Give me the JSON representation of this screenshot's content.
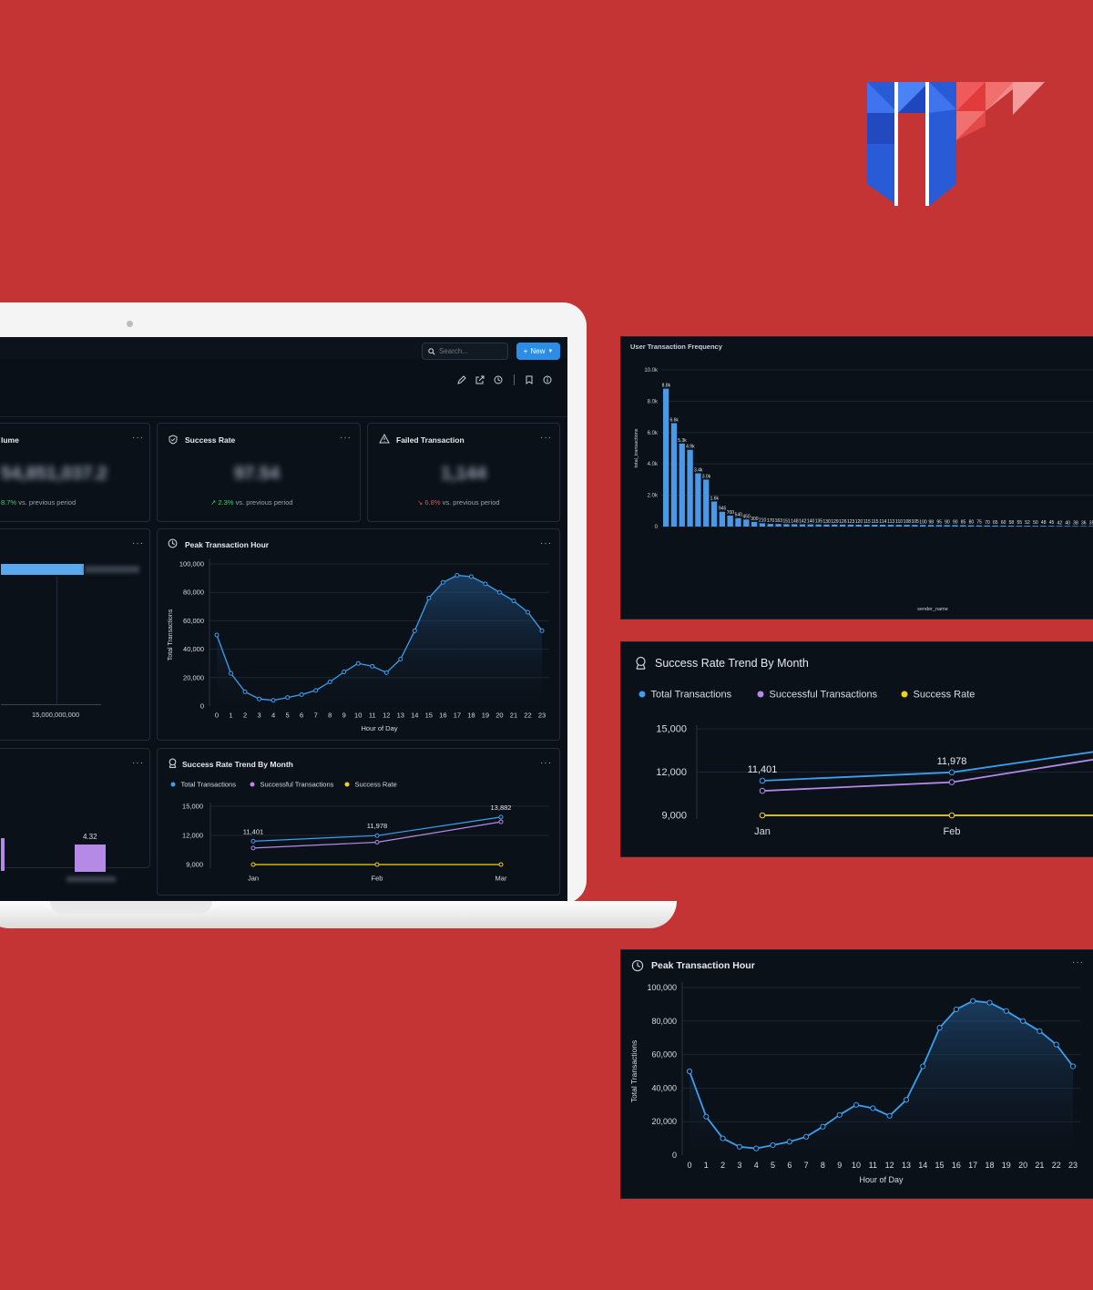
{
  "topbar": {
    "search_placeholder": "Search...",
    "new_label": "New"
  },
  "kpis": [
    {
      "title": "lume",
      "value": "54,851,037.2",
      "delta": "8.7%",
      "delta_text": "vs. previous period"
    },
    {
      "title": "Success Rate",
      "value": "97.54",
      "delta": "2.3%",
      "delta_text": "vs. previous period"
    },
    {
      "title": "Failed Transaction",
      "value": "1,144",
      "delta": "6.8%",
      "delta_text": "vs. previous period"
    }
  ],
  "left_bar_card": {
    "tick": "15,000,000,000"
  },
  "left_small_card": {
    "value_label": "4.32"
  },
  "peak_card": {
    "title": "Peak Transaction Hour"
  },
  "success_card": {
    "title": "Success Rate Trend By Month"
  },
  "freq_panel": {
    "title": "User Transaction Frequency"
  },
  "colors": {
    "background": "#c43434",
    "screen": "#0a1018",
    "accent": "#2b8de6",
    "line_blue": "#3aa0f0",
    "line_purple": "#b48ae6",
    "line_yellow": "#f2d21b"
  },
  "icons": {
    "search": "magnifier",
    "new": "plus",
    "edit": "pencil",
    "share": "external-link",
    "history": "clock",
    "bookmark": "bookmark",
    "info": "info-circle"
  },
  "chart_data": [
    {
      "type": "line",
      "title": "Peak Transaction Hour",
      "xlabel": "Hour of Day",
      "ylabel": "Total Transactions",
      "x": [
        0,
        1,
        2,
        3,
        4,
        5,
        6,
        7,
        8,
        9,
        10,
        11,
        12,
        13,
        14,
        15,
        16,
        17,
        18,
        19,
        20,
        21,
        22,
        23
      ],
      "values": [
        50000,
        23000,
        10000,
        5000,
        4000,
        6000,
        8000,
        11000,
        17000,
        24000,
        30000,
        28000,
        23500,
        33000,
        53000,
        76000,
        87000,
        92000,
        91000,
        86000,
        80000,
        74000,
        66000,
        53000
      ],
      "y_ticks": [
        "0",
        "20,000",
        "40,000",
        "60,000",
        "80,000",
        "100,000"
      ],
      "ylim": [
        0,
        100000
      ],
      "area_fill": true
    },
    {
      "type": "line",
      "title": "Success Rate Trend By Month",
      "categories": [
        "Jan",
        "Feb",
        "Mar"
      ],
      "series": [
        {
          "name": "Total Transactions",
          "values": [
            11401,
            11978,
            13882
          ],
          "labels": [
            "11,401",
            "11,978",
            "13,882"
          ]
        },
        {
          "name": "Successful Transactions",
          "values": [
            10700,
            11300,
            13400
          ]
        },
        {
          "name": "Success Rate",
          "values": [
            9000,
            9000,
            9000
          ]
        }
      ],
      "y_ticks": [
        "9,000",
        "12,000",
        "15,000"
      ],
      "ylim": [
        9000,
        15000
      ],
      "legend": "top-left"
    },
    {
      "type": "bar",
      "title": "User Transaction Frequency",
      "xlabel": "sender_name",
      "ylabel": "total_transactions",
      "y_ticks": [
        "0",
        "2.0k",
        "4.0k",
        "6.0k",
        "8.0k",
        "10.0k"
      ],
      "ylim": [
        0,
        10000
      ],
      "values": [
        8800,
        6600,
        5300,
        4900,
        3400,
        3000,
        1600,
        945,
        700,
        540,
        450,
        300,
        210,
        170,
        163,
        151,
        148,
        142,
        140,
        135,
        130,
        129,
        126,
        123,
        120,
        115,
        115,
        114,
        113,
        110,
        108,
        105,
        100,
        98,
        95,
        90,
        90,
        85,
        80,
        75,
        70,
        65,
        60,
        58,
        55,
        52,
        50,
        48,
        45,
        42,
        40,
        38,
        36,
        35
      ]
    }
  ]
}
